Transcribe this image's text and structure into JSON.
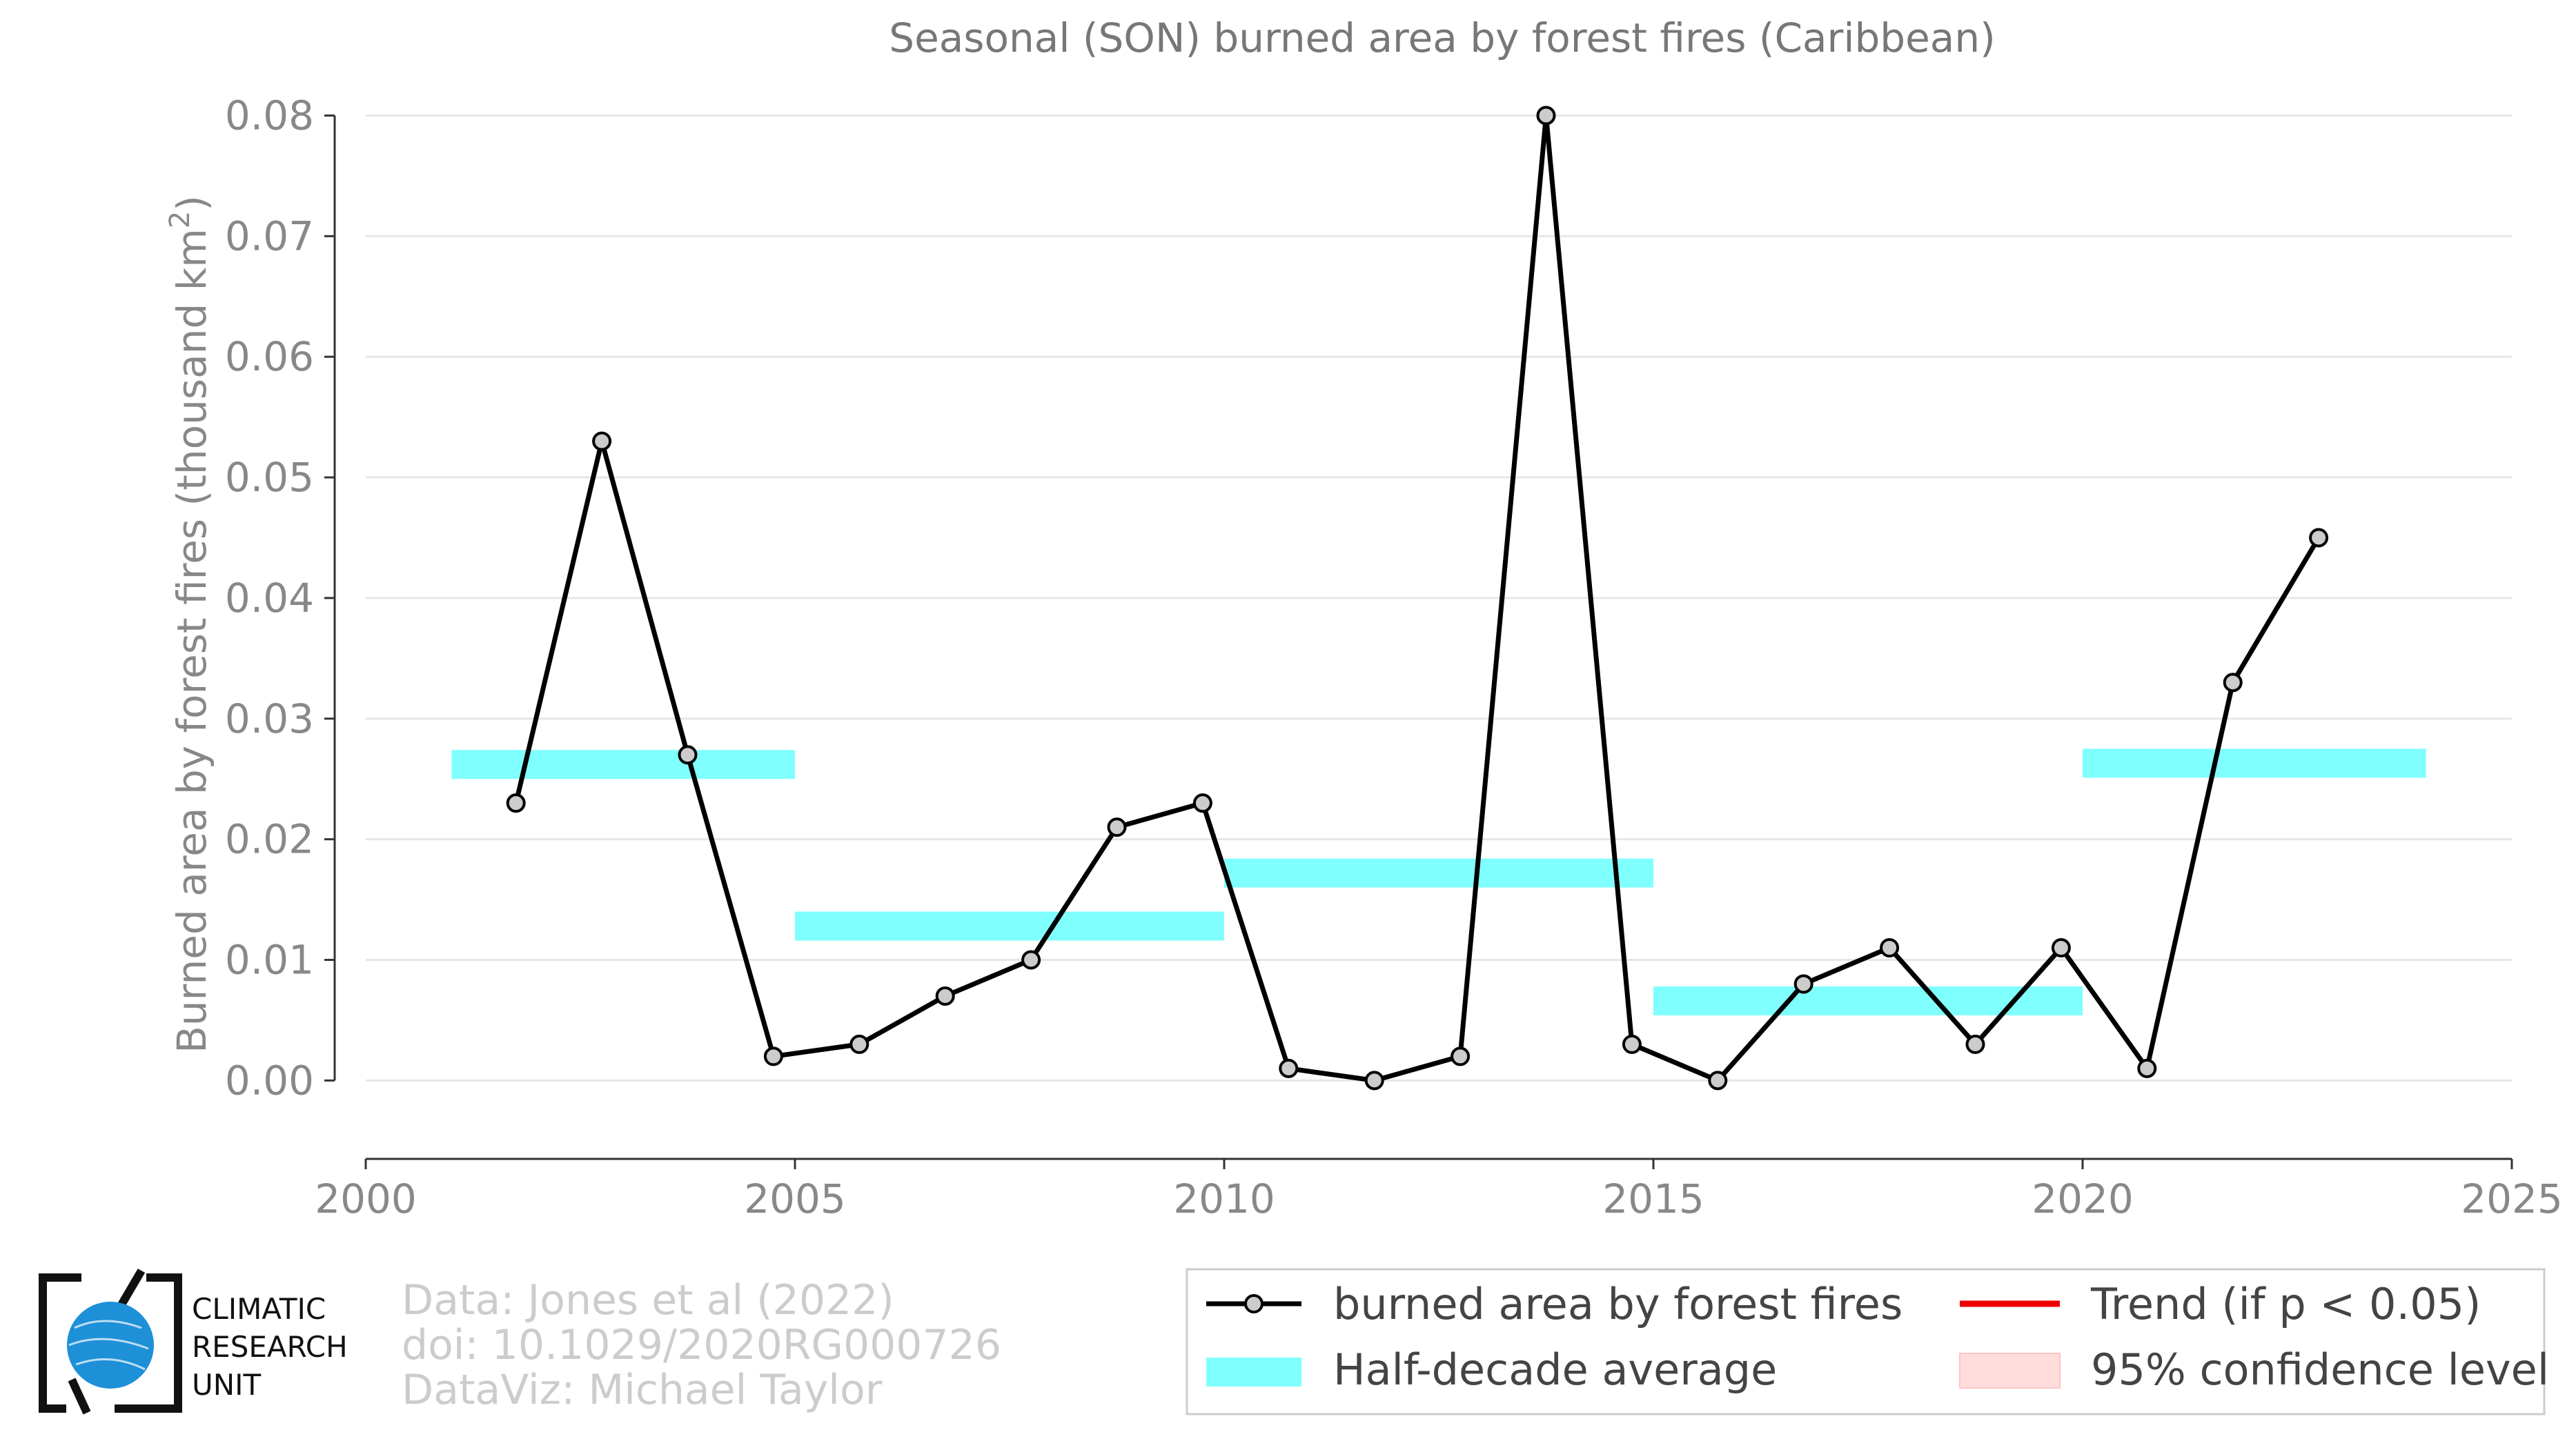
{
  "chart_data": {
    "type": "line",
    "title": "Seasonal (SON) burned area by forest fires (Caribbean)",
    "ylabel": "Burned area by forest fires (thousand km",
    "ylabel_sup": "2",
    "ylabel_end": ")",
    "xlabel": "",
    "xlim": [
      2000,
      2025
    ],
    "ylim": [
      -0.0065,
      0.081
    ],
    "x_ticks": [
      2000,
      2005,
      2010,
      2015,
      2020,
      2025
    ],
    "x_tick_labels": [
      "2000",
      "2005",
      "2010",
      "2015",
      "2020",
      "2025"
    ],
    "y_ticks": [
      0,
      0.01,
      0.02,
      0.03,
      0.04,
      0.05,
      0.06,
      0.07,
      0.08
    ],
    "y_tick_labels": [
      "0.00",
      "0.01",
      "0.02",
      "0.03",
      "0.04",
      "0.05",
      "0.06",
      "0.07",
      "0.08"
    ],
    "grid": "horizontal",
    "series": [
      {
        "name": "burned area by forest fires",
        "color": "#000000",
        "marker_fill": "#cccccc",
        "x": [
          2001.75,
          2002.75,
          2003.75,
          2004.75,
          2005.75,
          2006.75,
          2007.75,
          2008.75,
          2009.75,
          2010.75,
          2011.75,
          2012.75,
          2013.75,
          2014.75,
          2015.75,
          2016.75,
          2017.75,
          2018.75,
          2019.75,
          2020.75,
          2021.75,
          2022.75
        ],
        "y": [
          0.023,
          0.053,
          0.027,
          0.002,
          0.003,
          0.007,
          0.01,
          0.021,
          0.023,
          0.001,
          0.0,
          0.002,
          0.08,
          0.003,
          0.0,
          0.008,
          0.011,
          0.003,
          0.011,
          0.001,
          0.033,
          0.045
        ]
      }
    ],
    "half_decade_average": {
      "name": "Half-decade average",
      "color": "#80ffff",
      "segments": [
        {
          "x0": 2001,
          "x1": 2005,
          "y": 0.0262
        },
        {
          "x0": 2005,
          "x1": 2010,
          "y": 0.0128
        },
        {
          "x0": 2010,
          "x1": 2015,
          "y": 0.0172
        },
        {
          "x0": 2015,
          "x1": 2020,
          "y": 0.0066
        },
        {
          "x0": 2020,
          "x1": 2024,
          "y": 0.0263
        }
      ]
    },
    "legend": {
      "placement": "bottom-right",
      "entries": [
        {
          "label": "burned area by forest fires",
          "color": "#000000"
        },
        {
          "label": "Trend (if p < 0.05)",
          "color": "#ee0000"
        },
        {
          "label": "Half-decade average",
          "color": "#80ffff"
        },
        {
          "label": "95% confidence level",
          "color": "#ffdddd"
        }
      ]
    }
  },
  "credits": {
    "lines": [
      "Data: Jones et al (2022)",
      "doi: 10.1029/2020RG000726",
      "DataViz: Michael Taylor"
    ]
  },
  "logo": {
    "lines": [
      "CLIMATIC",
      "RESEARCH",
      "UNIT"
    ],
    "globe_color": "#1e90d8"
  }
}
